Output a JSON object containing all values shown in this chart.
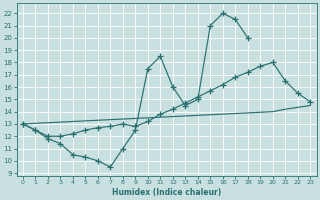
{
  "xlabel": "Humidex (Indice chaleur)",
  "xlim": [
    -0.5,
    23.5
  ],
  "ylim": [
    8.8,
    22.8
  ],
  "yticks": [
    9,
    10,
    11,
    12,
    13,
    14,
    15,
    16,
    17,
    18,
    19,
    20,
    21,
    22
  ],
  "xticks": [
    0,
    1,
    2,
    3,
    4,
    5,
    6,
    7,
    8,
    9,
    10,
    11,
    12,
    13,
    14,
    15,
    16,
    17,
    18,
    19,
    20,
    21,
    22,
    23
  ],
  "bg_color": "#c8e0e0",
  "grid_color": "#ffffff",
  "line_color": "#2a7070",
  "line1_x": [
    0,
    1,
    2,
    3,
    4,
    5,
    6,
    7,
    8,
    9,
    10,
    11,
    12,
    13,
    14,
    15,
    16,
    17,
    18
  ],
  "line1_y": [
    13.0,
    12.5,
    11.8,
    11.4,
    10.5,
    10.3,
    10.0,
    9.5,
    11.0,
    12.5,
    17.5,
    18.5,
    16.0,
    14.5,
    15.0,
    21.0,
    22.0,
    21.5,
    20.0
  ],
  "line2_x": [
    0,
    1,
    2,
    3,
    4,
    5,
    6,
    7,
    8,
    9,
    10,
    11,
    12,
    13,
    14,
    15,
    16,
    17,
    18,
    19,
    20,
    21,
    22,
    23
  ],
  "line2_y": [
    13.0,
    12.5,
    12.0,
    12.0,
    12.2,
    12.5,
    12.7,
    12.8,
    13.0,
    12.8,
    13.2,
    13.8,
    14.2,
    14.7,
    15.2,
    15.7,
    16.2,
    16.8,
    17.2,
    17.7,
    18.0,
    16.5,
    15.5,
    14.8
  ],
  "line3_x": [
    0,
    1,
    2,
    3,
    4,
    5,
    6,
    7,
    8,
    9,
    10,
    11,
    12,
    13,
    14,
    15,
    16,
    17,
    18,
    19,
    20,
    21,
    22,
    23
  ],
  "line3_y": [
    13.0,
    13.05,
    13.1,
    13.15,
    13.2,
    13.25,
    13.3,
    13.35,
    13.4,
    13.45,
    13.5,
    13.55,
    13.6,
    13.65,
    13.7,
    13.75,
    13.8,
    13.85,
    13.9,
    13.95,
    14.0,
    14.2,
    14.35,
    14.5
  ]
}
